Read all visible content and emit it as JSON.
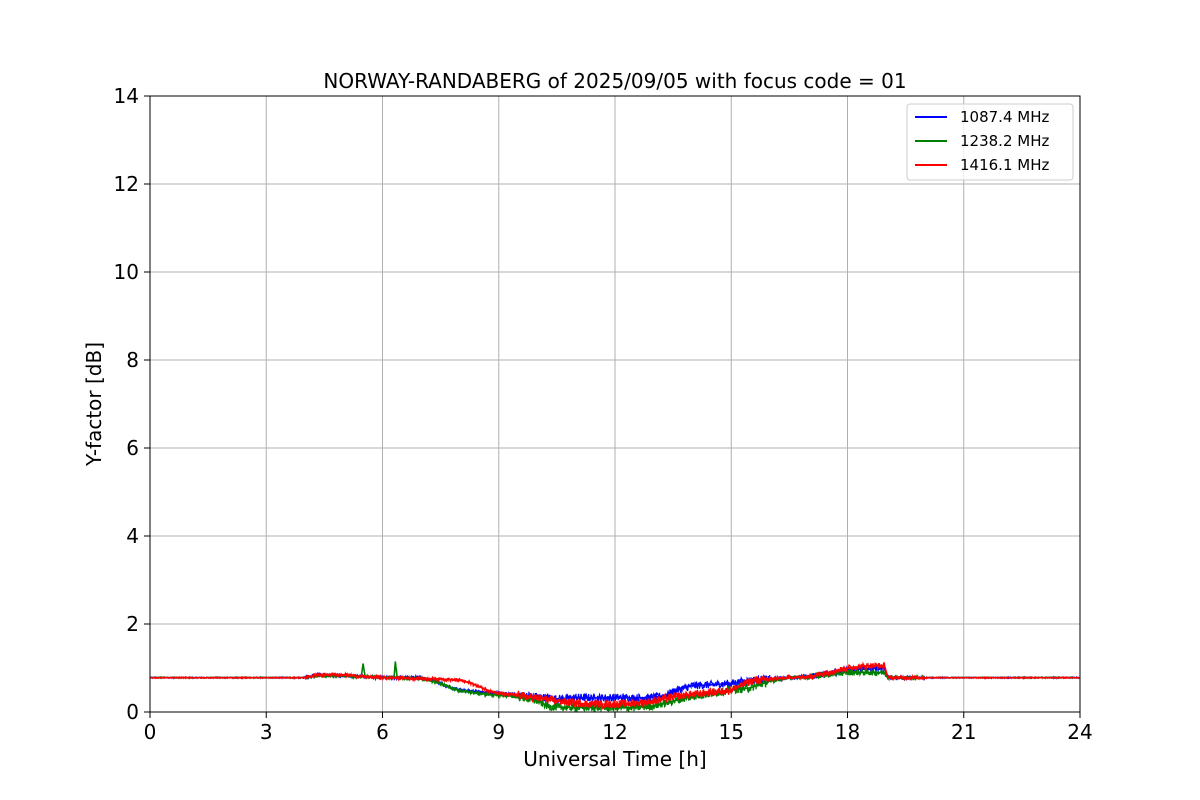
{
  "chart_data": {
    "type": "line",
    "title": "NORWAY-RANDABERG of 2025/09/05 with focus code = 01",
    "xlabel": "Universal Time [h]",
    "ylabel": "Y-factor [dB]",
    "xlim": [
      0,
      24
    ],
    "ylim": [
      0,
      14
    ],
    "xticks": [
      0,
      3,
      6,
      9,
      12,
      15,
      18,
      21,
      24
    ],
    "yticks": [
      0,
      2,
      4,
      6,
      8,
      10,
      12,
      14
    ],
    "grid": true,
    "legend_position": "top-right",
    "series": [
      {
        "name": "1087.4 MHz",
        "color": "#0000ff",
        "points": [
          [
            0,
            0.78
          ],
          [
            2,
            0.78
          ],
          [
            4,
            0.78
          ],
          [
            4.3,
            0.84
          ],
          [
            5,
            0.83
          ],
          [
            5.5,
            0.8
          ],
          [
            6,
            0.78
          ],
          [
            7,
            0.78
          ],
          [
            7.4,
            0.72
          ],
          [
            7.6,
            0.6
          ],
          [
            8,
            0.5
          ],
          [
            8.5,
            0.45
          ],
          [
            9,
            0.42
          ],
          [
            9.6,
            0.38
          ],
          [
            10,
            0.35
          ],
          [
            10.5,
            0.3
          ],
          [
            11,
            0.33
          ],
          [
            11.5,
            0.32
          ],
          [
            12,
            0.33
          ],
          [
            12.5,
            0.32
          ],
          [
            13,
            0.33
          ],
          [
            13.3,
            0.38
          ],
          [
            13.6,
            0.5
          ],
          [
            14,
            0.6
          ],
          [
            14.5,
            0.62
          ],
          [
            15,
            0.65
          ],
          [
            15.5,
            0.72
          ],
          [
            16,
            0.75
          ],
          [
            16.5,
            0.78
          ],
          [
            17,
            0.8
          ],
          [
            17.5,
            0.88
          ],
          [
            18,
            0.95
          ],
          [
            18.5,
            0.98
          ],
          [
            18.95,
            1.0
          ],
          [
            19.05,
            0.78
          ],
          [
            20,
            0.78
          ],
          [
            22,
            0.78
          ],
          [
            24,
            0.78
          ]
        ]
      },
      {
        "name": "1238.2 MHz",
        "color": "#008000",
        "points": [
          [
            0,
            0.78
          ],
          [
            2,
            0.78
          ],
          [
            4,
            0.78
          ],
          [
            4.3,
            0.83
          ],
          [
            5,
            0.82
          ],
          [
            5.45,
            0.8
          ],
          [
            5.5,
            1.1
          ],
          [
            5.55,
            0.8
          ],
          [
            6,
            0.78
          ],
          [
            6.3,
            0.78
          ],
          [
            6.33,
            1.15
          ],
          [
            6.38,
            0.78
          ],
          [
            7,
            0.76
          ],
          [
            7.5,
            0.65
          ],
          [
            8,
            0.48
          ],
          [
            8.5,
            0.42
          ],
          [
            9,
            0.38
          ],
          [
            9.5,
            0.35
          ],
          [
            10,
            0.25
          ],
          [
            10.3,
            0.12
          ],
          [
            11,
            0.1
          ],
          [
            11.5,
            0.1
          ],
          [
            12,
            0.1
          ],
          [
            12.5,
            0.1
          ],
          [
            13,
            0.14
          ],
          [
            13.5,
            0.25
          ],
          [
            14,
            0.35
          ],
          [
            14.5,
            0.42
          ],
          [
            15,
            0.5
          ],
          [
            15.5,
            0.55
          ],
          [
            16,
            0.7
          ],
          [
            16.5,
            0.78
          ],
          [
            17,
            0.8
          ],
          [
            17.5,
            0.85
          ],
          [
            18,
            0.9
          ],
          [
            18.5,
            0.9
          ],
          [
            18.95,
            0.9
          ],
          [
            19.05,
            0.78
          ],
          [
            20,
            0.78
          ],
          [
            22,
            0.78
          ],
          [
            24,
            0.78
          ]
        ]
      },
      {
        "name": "1416.1 MHz",
        "color": "#ff0000",
        "points": [
          [
            0,
            0.78
          ],
          [
            2,
            0.78
          ],
          [
            4,
            0.78
          ],
          [
            4.3,
            0.84
          ],
          [
            5,
            0.85
          ],
          [
            5.5,
            0.8
          ],
          [
            6,
            0.78
          ],
          [
            7,
            0.76
          ],
          [
            7.5,
            0.75
          ],
          [
            8,
            0.72
          ],
          [
            8.3,
            0.65
          ],
          [
            8.7,
            0.5
          ],
          [
            9,
            0.42
          ],
          [
            9.5,
            0.38
          ],
          [
            10,
            0.32
          ],
          [
            10.5,
            0.25
          ],
          [
            11,
            0.2
          ],
          [
            11.5,
            0.18
          ],
          [
            12,
            0.18
          ],
          [
            12.5,
            0.2
          ],
          [
            13,
            0.25
          ],
          [
            13.5,
            0.35
          ],
          [
            14,
            0.4
          ],
          [
            14.5,
            0.45
          ],
          [
            15,
            0.5
          ],
          [
            15.5,
            0.7
          ],
          [
            16,
            0.75
          ],
          [
            16.5,
            0.78
          ],
          [
            17,
            0.8
          ],
          [
            17.5,
            0.9
          ],
          [
            18,
            1.0
          ],
          [
            18.5,
            1.05
          ],
          [
            18.95,
            1.05
          ],
          [
            19.05,
            0.78
          ],
          [
            20,
            0.78
          ],
          [
            22,
            0.78
          ],
          [
            24,
            0.78
          ]
        ]
      }
    ]
  }
}
